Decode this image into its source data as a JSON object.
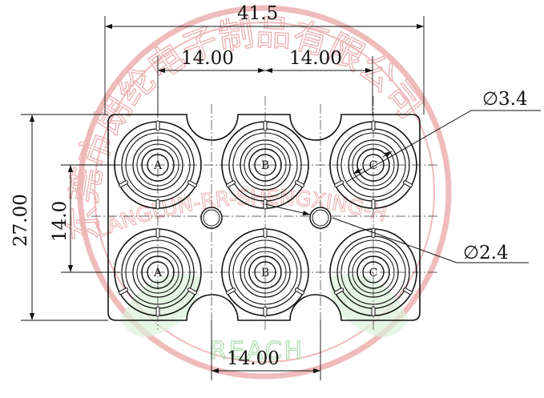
{
  "dimensions": {
    "overall_width": "41.5",
    "top_pitch_left": "14.00",
    "top_pitch_right": "14.00",
    "overall_height": "27.00",
    "row_pitch": "14.0",
    "bottom_pitch": "14.00",
    "large_hole_diameter": "∅3.4",
    "small_hole_diameter": "∅2.4"
  },
  "jacks": [
    {
      "label": "A"
    },
    {
      "label": "B"
    },
    {
      "label": "C"
    },
    {
      "label": "A"
    },
    {
      "label": "B"
    },
    {
      "label": "C"
    }
  ],
  "watermark": {
    "company_text": "东莞市朗纶电子制品有限公司",
    "english_text": "LANGLUN-RR-SHENGXING-H",
    "reach_text": "REACH",
    "color": "#e8a0a0",
    "leaf_color": "#8ccf8c"
  },
  "colors": {
    "line": "#111111",
    "paper": "#ffffff"
  }
}
